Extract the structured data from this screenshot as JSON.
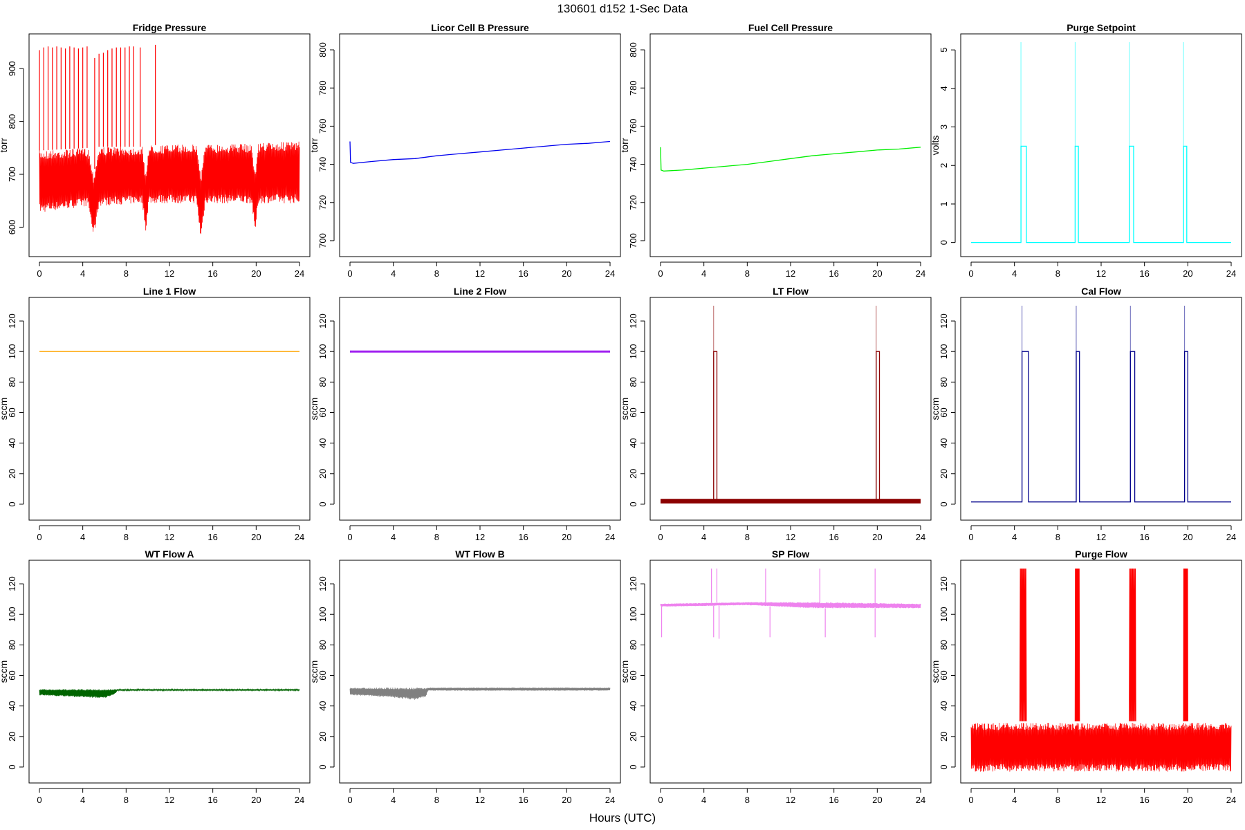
{
  "figure_title": "130601   d152   1-Sec Data",
  "xlabel": "Hours (UTC)",
  "chart_data": [
    {
      "type": "line",
      "title": "Fridge Pressure",
      "ylabel": "torr",
      "xlim": [
        0,
        24
      ],
      "ylim": [
        560,
        950
      ],
      "xticks": [
        0,
        4,
        8,
        12,
        16,
        20,
        24
      ],
      "yticks": [
        600,
        700,
        800,
        900
      ],
      "color": "#ff0000",
      "style": "noisy",
      "band": [
        [
          0,
          627,
          745
        ],
        [
          4.5,
          640,
          750
        ],
        [
          5,
          580,
          700
        ],
        [
          5.5,
          640,
          752
        ],
        [
          9.5,
          645,
          752
        ],
        [
          9.8,
          590,
          700
        ],
        [
          10.1,
          645,
          755
        ],
        [
          14.5,
          645,
          757
        ],
        [
          14.9,
          575,
          700
        ],
        [
          15.3,
          645,
          757
        ],
        [
          19.6,
          645,
          758
        ],
        [
          19.9,
          585,
          700
        ],
        [
          20.2,
          645,
          760
        ],
        [
          24,
          645,
          762
        ]
      ],
      "spikes": [
        0,
        0.4,
        0.8,
        1.2,
        1.6,
        2.0,
        2.4,
        2.8,
        3.2,
        3.6,
        4.0,
        4.4,
        5.1,
        5.5,
        5.9,
        6.3,
        6.7,
        7.1,
        7.5,
        7.9,
        8.3,
        8.7,
        9.3,
        10.7
      ],
      "spike_top": [
        935,
        940,
        942,
        940,
        942,
        940,
        938,
        942,
        940,
        938,
        940,
        942,
        920,
        928,
        930,
        935,
        938,
        940,
        940,
        940,
        942,
        942,
        940,
        945
      ]
    },
    {
      "type": "line",
      "title": "Licor Cell B Pressure",
      "ylabel": "torr",
      "xlim": [
        0,
        24
      ],
      "ylim": [
        696,
        804
      ],
      "xticks": [
        0,
        4,
        8,
        12,
        16,
        20,
        24
      ],
      "yticks": [
        700,
        720,
        740,
        760,
        780,
        800
      ],
      "color": "#0000ee",
      "style": "line",
      "points": [
        [
          0,
          752
        ],
        [
          0.05,
          741
        ],
        [
          0.3,
          740.5
        ],
        [
          2,
          741.5
        ],
        [
          4,
          742.5
        ],
        [
          6,
          743
        ],
        [
          8,
          744.5
        ],
        [
          10,
          745.5
        ],
        [
          12,
          746.5
        ],
        [
          14,
          747.5
        ],
        [
          16,
          748.5
        ],
        [
          18,
          749.5
        ],
        [
          20,
          750.5
        ],
        [
          22,
          751
        ],
        [
          24,
          752
        ]
      ]
    },
    {
      "type": "line",
      "title": "Fuel Cell Pressure",
      "ylabel": "torr",
      "xlim": [
        0,
        24
      ],
      "ylim": [
        696,
        804
      ],
      "xticks": [
        0,
        4,
        8,
        12,
        16,
        20,
        24
      ],
      "yticks": [
        700,
        720,
        740,
        760,
        780,
        800
      ],
      "color": "#00ee00",
      "style": "line",
      "points": [
        [
          0,
          749
        ],
        [
          0.05,
          737
        ],
        [
          0.3,
          736.5
        ],
        [
          2,
          737
        ],
        [
          4,
          738
        ],
        [
          6,
          739
        ],
        [
          8,
          740
        ],
        [
          10,
          741.5
        ],
        [
          12,
          743
        ],
        [
          14,
          744.5
        ],
        [
          16,
          745.5
        ],
        [
          18,
          746.5
        ],
        [
          20,
          747.5
        ],
        [
          22,
          748
        ],
        [
          24,
          749
        ]
      ]
    },
    {
      "type": "line",
      "title": "Purge Setpoint",
      "ylabel": "volts",
      "xlim": [
        0,
        24
      ],
      "ylim": [
        -0.15,
        5.2
      ],
      "xticks": [
        0,
        4,
        8,
        12,
        16,
        20,
        24
      ],
      "yticks": [
        0,
        1,
        2,
        3,
        4,
        5
      ],
      "color": "#00ffff",
      "style": "pulses",
      "base": 0,
      "pulses": [
        [
          4.6,
          5.1,
          2.5
        ],
        [
          9.6,
          9.9,
          2.5
        ],
        [
          14.6,
          15.0,
          2.5
        ],
        [
          19.6,
          19.9,
          2.5
        ]
      ]
    },
    {
      "type": "line",
      "title": "Line 1 Flow",
      "ylabel": "sccm",
      "xlim": [
        0,
        24
      ],
      "ylim": [
        -5,
        130
      ],
      "xticks": [
        0,
        4,
        8,
        12,
        16,
        20,
        24
      ],
      "yticks": [
        0,
        20,
        40,
        60,
        80,
        100,
        120
      ],
      "color": "#ffa500",
      "style": "line",
      "points": [
        [
          0,
          100
        ],
        [
          24,
          100
        ]
      ]
    },
    {
      "type": "line",
      "title": "Line 2 Flow",
      "ylabel": "sccm",
      "xlim": [
        0,
        24
      ],
      "ylim": [
        -5,
        130
      ],
      "xticks": [
        0,
        4,
        8,
        12,
        16,
        20,
        24
      ],
      "yticks": [
        0,
        20,
        40,
        60,
        80,
        100,
        120
      ],
      "color": "#a020f0",
      "style": "thick",
      "points": [
        [
          0,
          100
        ],
        [
          24,
          100
        ]
      ]
    },
    {
      "type": "line",
      "title": "LT Flow",
      "ylabel": "sccm",
      "xlim": [
        0,
        24
      ],
      "ylim": [
        -5,
        130
      ],
      "xticks": [
        0,
        4,
        8,
        12,
        16,
        20,
        24
      ],
      "yticks": [
        0,
        20,
        40,
        60,
        80,
        100,
        120
      ],
      "color": "#8b0000",
      "style": "pulses",
      "base": 2,
      "thickbase": true,
      "pulses": [
        [
          4.9,
          5.2,
          100
        ],
        [
          19.9,
          20.2,
          100
        ]
      ]
    },
    {
      "type": "line",
      "title": "Cal Flow",
      "ylabel": "sccm",
      "xlim": [
        0,
        24
      ],
      "ylim": [
        -5,
        130
      ],
      "xticks": [
        0,
        4,
        8,
        12,
        16,
        20,
        24
      ],
      "yticks": [
        0,
        20,
        40,
        60,
        80,
        100,
        120
      ],
      "color": "#00008b",
      "style": "pulses",
      "base": 1.5,
      "pulses": [
        [
          4.7,
          5.3,
          100
        ],
        [
          9.7,
          10.0,
          100
        ],
        [
          14.7,
          15.1,
          100
        ],
        [
          19.7,
          20.0,
          100
        ]
      ]
    },
    {
      "type": "line",
      "title": "WT Flow A",
      "ylabel": "sccm",
      "xlim": [
        0,
        24
      ],
      "ylim": [
        -5,
        130
      ],
      "xticks": [
        0,
        4,
        8,
        12,
        16,
        20,
        24
      ],
      "yticks": [
        0,
        20,
        40,
        60,
        80,
        100,
        120
      ],
      "color": "#006400",
      "style": "noisy",
      "band": [
        [
          0,
          47,
          51
        ],
        [
          3,
          46,
          51
        ],
        [
          6,
          45,
          51
        ],
        [
          7,
          48,
          51
        ],
        [
          7.2,
          50,
          51
        ],
        [
          24,
          50,
          51
        ]
      ]
    },
    {
      "type": "line",
      "title": "WT Flow B",
      "ylabel": "sccm",
      "xlim": [
        0,
        24
      ],
      "ylim": [
        -5,
        130
      ],
      "xticks": [
        0,
        4,
        8,
        12,
        16,
        20,
        24
      ],
      "yticks": [
        0,
        20,
        40,
        60,
        80,
        100,
        120
      ],
      "color": "#808080",
      "style": "noisy",
      "band": [
        [
          0,
          47,
          52
        ],
        [
          3,
          46,
          52
        ],
        [
          6,
          44,
          52
        ],
        [
          7,
          46,
          52
        ],
        [
          7.2,
          50,
          52
        ],
        [
          24,
          50,
          52
        ]
      ]
    },
    {
      "type": "line",
      "title": "SP Flow",
      "ylabel": "sccm",
      "xlim": [
        0,
        24
      ],
      "ylim": [
        -5,
        130
      ],
      "xticks": [
        0,
        4,
        8,
        12,
        16,
        20,
        24
      ],
      "yticks": [
        0,
        20,
        40,
        60,
        80,
        100,
        120
      ],
      "color": "#ee82ee",
      "style": "noisy",
      "band": [
        [
          0,
          105,
          107
        ],
        [
          8,
          106,
          108
        ],
        [
          14,
          104,
          108
        ],
        [
          24,
          104,
          107
        ]
      ],
      "spikes": [
        4.7,
        5.2,
        9.7,
        14.7,
        19.8
      ],
      "spike_top": [
        130,
        130,
        130,
        130,
        130
      ],
      "dips": [
        0.1,
        4.9,
        5.4,
        10.1,
        15.2,
        19.8
      ],
      "dip_bottom": [
        85,
        85,
        84,
        85,
        85,
        85
      ]
    },
    {
      "type": "line",
      "title": "Purge Flow",
      "ylabel": "sccm",
      "xlim": [
        0,
        24
      ],
      "ylim": [
        -5,
        130
      ],
      "xticks": [
        0,
        4,
        8,
        12,
        16,
        20,
        24
      ],
      "yticks": [
        0,
        20,
        40,
        60,
        80,
        100,
        120
      ],
      "color": "#ff0000",
      "style": "noisy",
      "band": [
        [
          0,
          -3,
          29
        ],
        [
          24,
          -3,
          29
        ]
      ],
      "bursts": [
        [
          4.5,
          5.1
        ],
        [
          9.6,
          10.0
        ],
        [
          14.6,
          15.2
        ],
        [
          19.6,
          20.0
        ]
      ]
    }
  ]
}
